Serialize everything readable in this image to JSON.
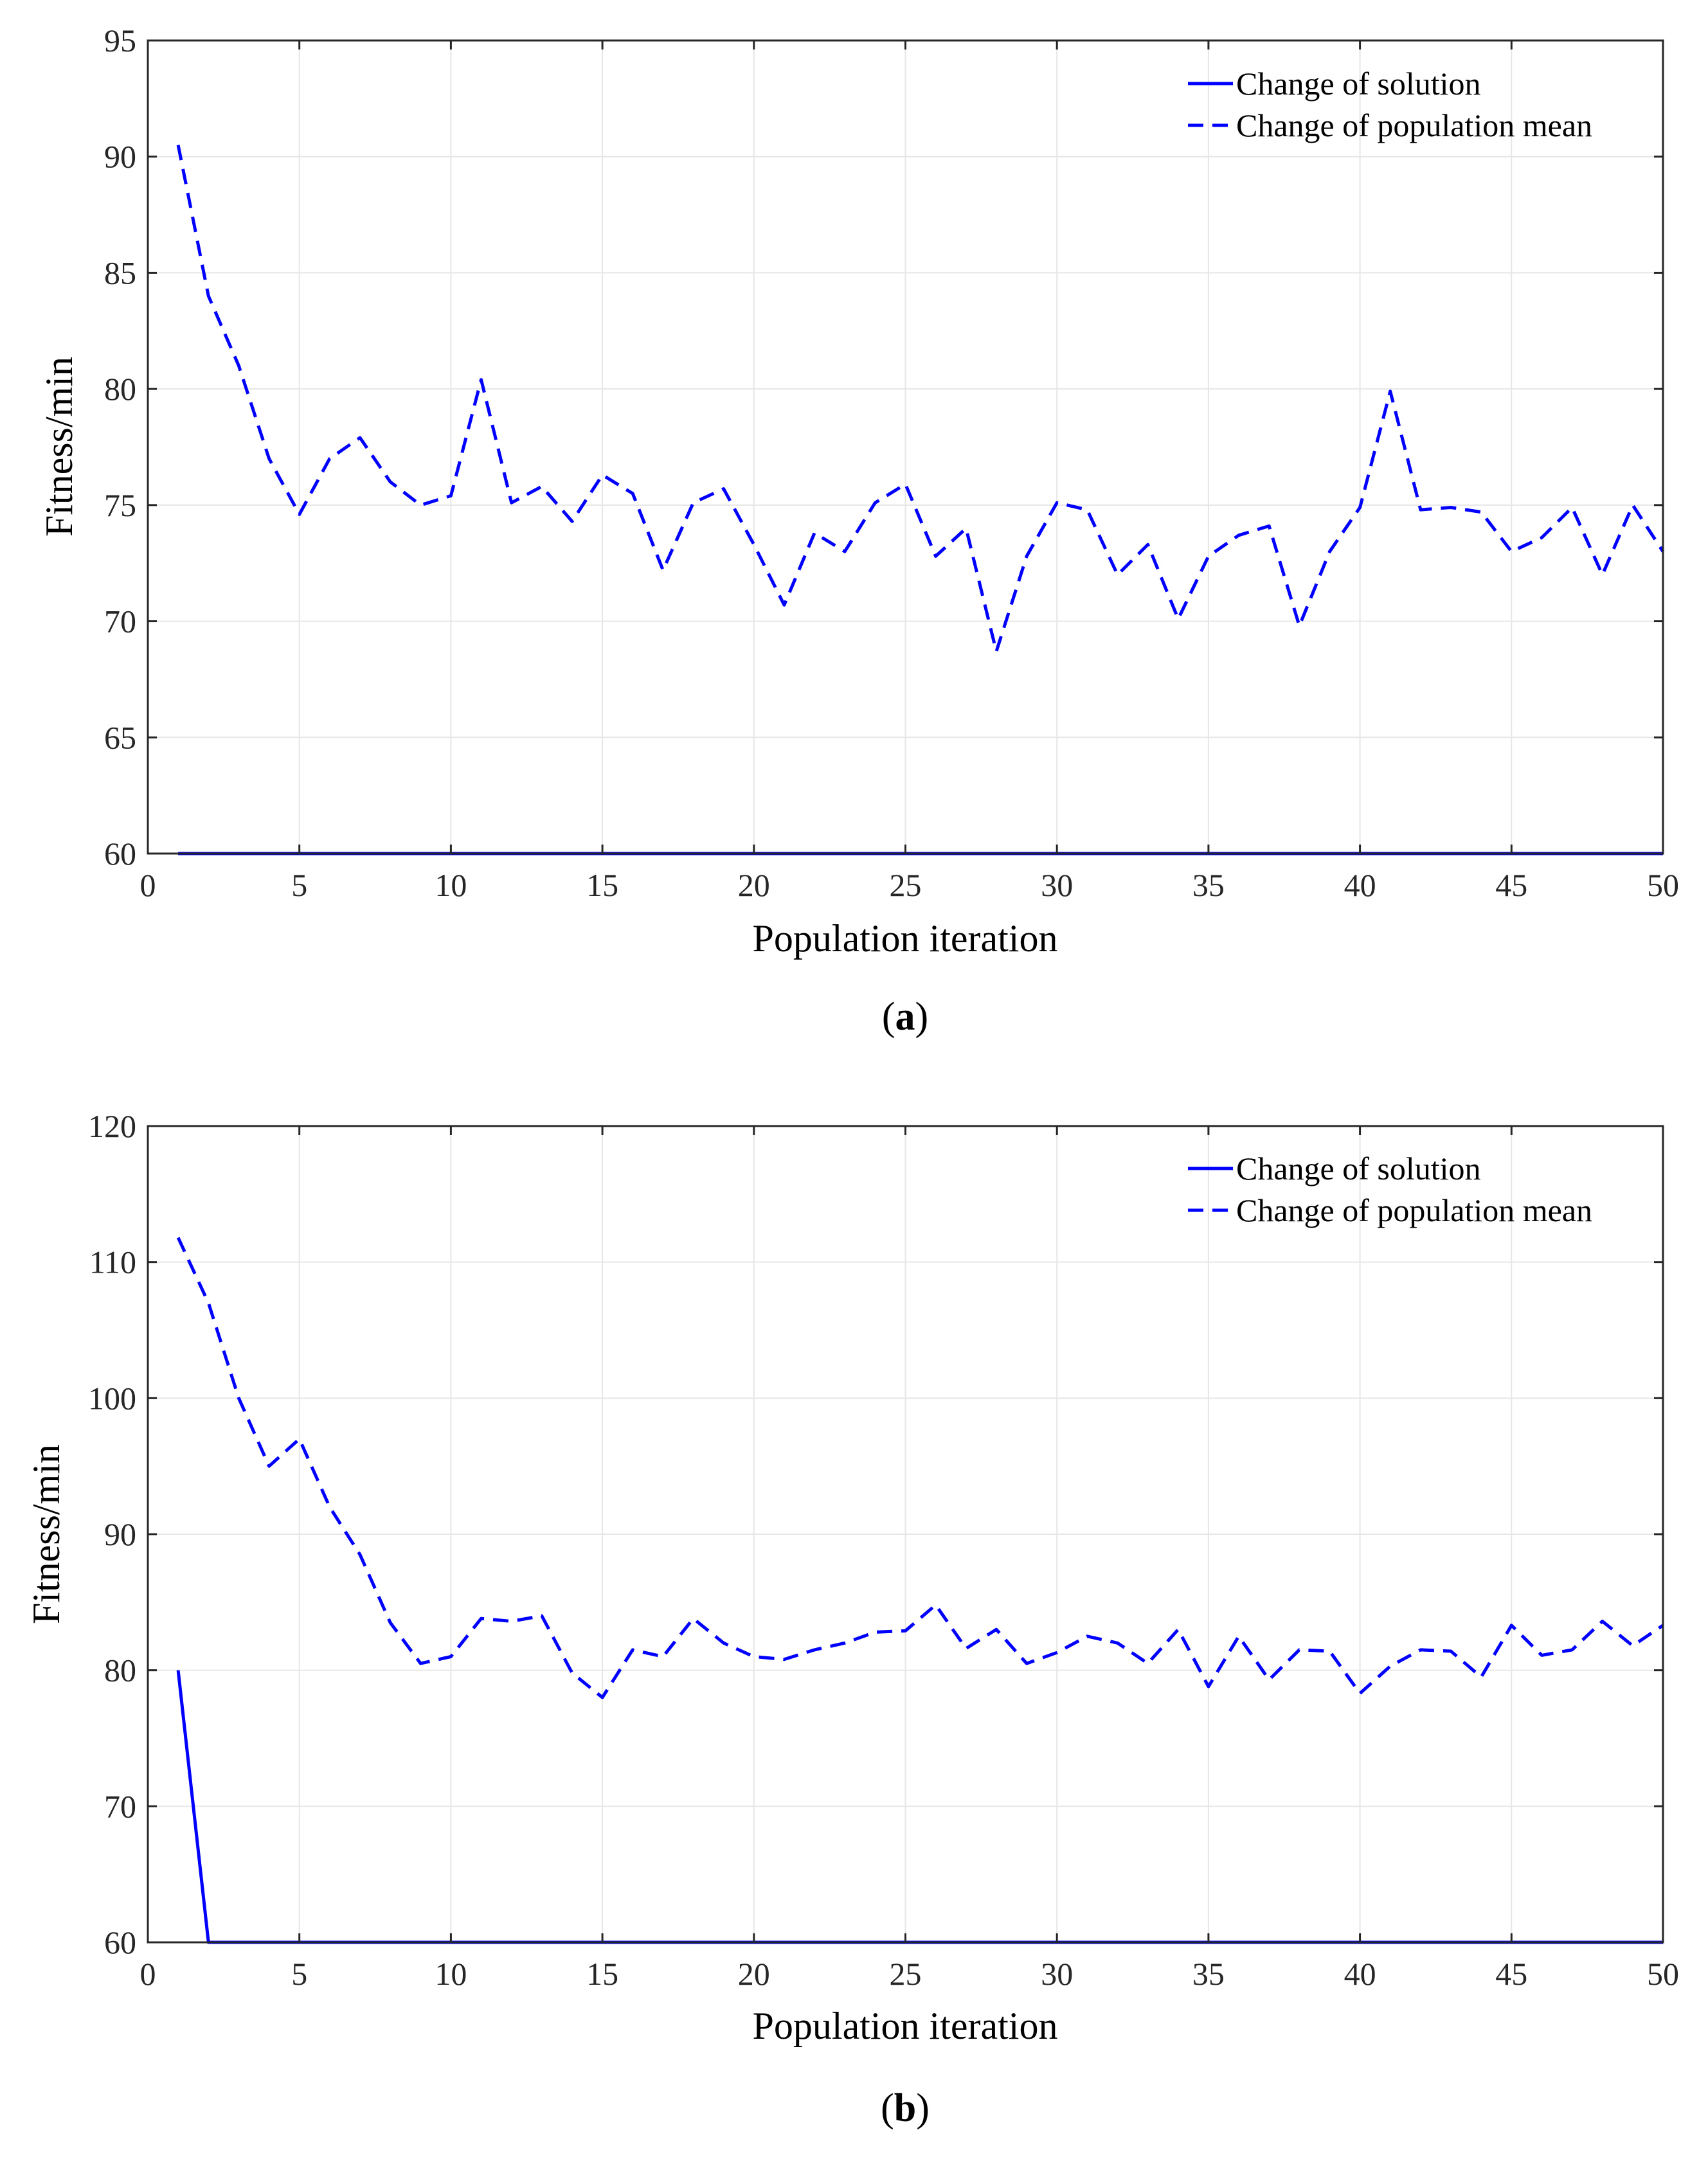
{
  "colors": {
    "series": "#0000ff",
    "grid": "#e6e6e6",
    "axis": "#262626",
    "background": "#ffffff"
  },
  "chart_data": [
    {
      "type": "line",
      "panel_label": "a",
      "title": "",
      "xlabel": "Population iteration",
      "ylabel": "Fitness/min",
      "xlim": [
        0,
        50
      ],
      "ylim": [
        60,
        95
      ],
      "xticks": [
        0,
        5,
        10,
        15,
        20,
        25,
        30,
        35,
        40,
        45,
        50
      ],
      "yticks": [
        60,
        65,
        70,
        75,
        80,
        85,
        90,
        95
      ],
      "grid": true,
      "legend": "top-right",
      "series": [
        {
          "name": "Change of solution",
          "style": "solid",
          "x": [
            1,
            2,
            3,
            4,
            5,
            6,
            7,
            8,
            9,
            10,
            11,
            12,
            13,
            14,
            15,
            16,
            17,
            18,
            19,
            20,
            21,
            22,
            23,
            24,
            25,
            26,
            27,
            28,
            29,
            30,
            31,
            32,
            33,
            34,
            35,
            36,
            37,
            38,
            39,
            40,
            41,
            42,
            43,
            44,
            45,
            46,
            47,
            48,
            49,
            50
          ],
          "values": [
            60,
            60,
            60,
            60,
            60,
            60,
            60,
            60,
            60,
            60,
            60,
            60,
            60,
            60,
            60,
            60,
            60,
            60,
            60,
            60,
            60,
            60,
            60,
            60,
            60,
            60,
            60,
            60,
            60,
            60,
            60,
            60,
            60,
            60,
            60,
            60,
            60,
            60,
            60,
            60,
            60,
            60,
            60,
            60,
            60,
            60,
            60,
            60,
            60,
            60
          ]
        },
        {
          "name": "Change of population mean",
          "style": "dashed",
          "x": [
            1,
            2,
            3,
            4,
            5,
            6,
            7,
            8,
            9,
            10,
            11,
            12,
            13,
            14,
            15,
            16,
            17,
            18,
            19,
            20,
            21,
            22,
            23,
            24,
            25,
            26,
            27,
            28,
            29,
            30,
            31,
            32,
            33,
            34,
            35,
            36,
            37,
            38,
            39,
            40,
            41,
            42,
            43,
            44,
            45,
            46,
            47,
            48,
            49,
            50
          ],
          "values": [
            90.5,
            84,
            81,
            77,
            74.6,
            77,
            77.9,
            76,
            75,
            75.4,
            80.4,
            75.1,
            75.8,
            74.3,
            76.3,
            75.5,
            72.2,
            75.1,
            75.7,
            73.3,
            70.7,
            73.8,
            73,
            75.1,
            75.9,
            72.8,
            74,
            68.7,
            72.8,
            75.1,
            74.8,
            72,
            73.3,
            70.1,
            72.8,
            73.7,
            74.1,
            69.8,
            73,
            74.9,
            79.9,
            74.8,
            74.9,
            74.7,
            73,
            73.6,
            74.9,
            72,
            75,
            73
          ]
        }
      ]
    },
    {
      "type": "line",
      "panel_label": "b",
      "title": "",
      "xlabel": "Population iteration",
      "ylabel": "Fitness/min",
      "xlim": [
        0,
        50
      ],
      "ylim": [
        60,
        120
      ],
      "xticks": [
        0,
        5,
        10,
        15,
        20,
        25,
        30,
        35,
        40,
        45,
        50
      ],
      "yticks": [
        60,
        70,
        80,
        90,
        100,
        110,
        120
      ],
      "grid": true,
      "legend": "top-right",
      "series": [
        {
          "name": "Change of solution",
          "style": "solid",
          "x": [
            1,
            2,
            3,
            4,
            5,
            6,
            7,
            8,
            9,
            10,
            11,
            12,
            13,
            14,
            15,
            16,
            17,
            18,
            19,
            20,
            21,
            22,
            23,
            24,
            25,
            26,
            27,
            28,
            29,
            30,
            31,
            32,
            33,
            34,
            35,
            36,
            37,
            38,
            39,
            40,
            41,
            42,
            43,
            44,
            45,
            46,
            47,
            48,
            49,
            50
          ],
          "values": [
            80,
            60,
            60,
            60,
            60,
            60,
            60,
            60,
            60,
            60,
            60,
            60,
            60,
            60,
            60,
            60,
            60,
            60,
            60,
            60,
            60,
            60,
            60,
            60,
            60,
            60,
            60,
            60,
            60,
            60,
            60,
            60,
            60,
            60,
            60,
            60,
            60,
            60,
            60,
            60,
            60,
            60,
            60,
            60,
            60,
            60,
            60,
            60,
            60,
            60
          ]
        },
        {
          "name": "Change of population mean",
          "style": "dashed",
          "x": [
            1,
            2,
            3,
            4,
            5,
            6,
            7,
            8,
            9,
            10,
            11,
            12,
            13,
            14,
            15,
            16,
            17,
            18,
            19,
            20,
            21,
            22,
            23,
            24,
            25,
            26,
            27,
            28,
            29,
            30,
            31,
            32,
            33,
            34,
            35,
            36,
            37,
            38,
            39,
            40,
            41,
            42,
            43,
            44,
            45,
            46,
            47,
            48,
            49,
            50
          ],
          "values": [
            111.8,
            107,
            100,
            95,
            97,
            92,
            88.5,
            83.5,
            80.5,
            81,
            83.8,
            83.6,
            84,
            79.8,
            78,
            81.5,
            81,
            83.8,
            82,
            81,
            80.8,
            81.5,
            82,
            82.8,
            82.9,
            84.8,
            81.6,
            83,
            80.5,
            81.3,
            82.5,
            82,
            80.5,
            83,
            78.8,
            82.5,
            79.3,
            81.5,
            81.4,
            78.3,
            80.3,
            81.5,
            81.4,
            79.5,
            83.3,
            81.1,
            81.5,
            83.6,
            81.8,
            83.3
          ]
        }
      ]
    }
  ]
}
